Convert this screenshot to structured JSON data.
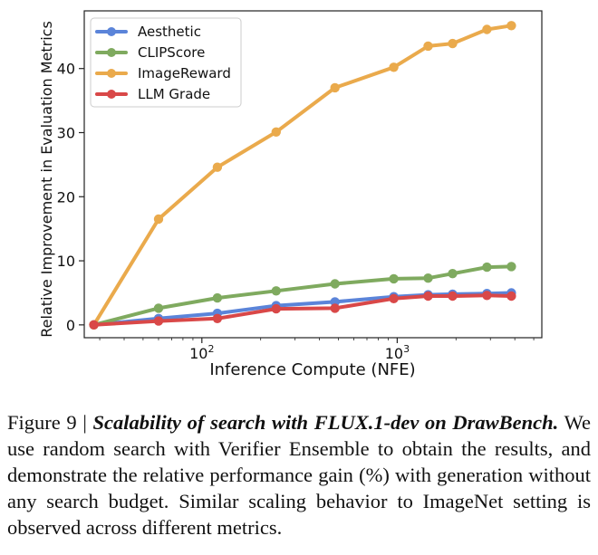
{
  "chart_data": {
    "type": "line",
    "title": "",
    "xlabel": "Inference Compute (NFE)",
    "ylabel": "Relative Improvement in Evaluation Metrics",
    "xscale": "log",
    "xlim": [
      25,
      5500
    ],
    "ylim": [
      -2,
      49
    ],
    "xticks": [
      {
        "value": 100,
        "base": "10",
        "exp": "2"
      },
      {
        "value": 1000,
        "base": "10",
        "exp": "3"
      }
    ],
    "yticks": [
      0,
      10,
      20,
      30,
      40
    ],
    "legend_position": "top-left",
    "series": [
      {
        "name": "Aesthetic",
        "color": "#5b84d9",
        "points": [
          [
            28,
            0
          ],
          [
            60,
            1.0
          ],
          [
            120,
            1.8
          ],
          [
            240,
            3.0
          ],
          [
            480,
            3.6
          ],
          [
            960,
            4.4
          ],
          [
            1440,
            4.7
          ],
          [
            1920,
            4.8
          ],
          [
            2880,
            4.9
          ],
          [
            3840,
            5.0
          ]
        ]
      },
      {
        "name": "CLIPScore",
        "color": "#7faa5f",
        "points": [
          [
            28,
            0
          ],
          [
            60,
            2.6
          ],
          [
            120,
            4.2
          ],
          [
            240,
            5.3
          ],
          [
            480,
            6.4
          ],
          [
            960,
            7.2
          ],
          [
            1440,
            7.3
          ],
          [
            1920,
            8.0
          ],
          [
            2880,
            9.0
          ],
          [
            3840,
            9.1
          ]
        ]
      },
      {
        "name": "ImageReward",
        "color": "#eaaa4c",
        "points": [
          [
            28,
            0
          ],
          [
            60,
            16.5
          ],
          [
            120,
            24.6
          ],
          [
            240,
            30.1
          ],
          [
            480,
            37.0
          ],
          [
            960,
            40.2
          ],
          [
            1440,
            43.5
          ],
          [
            1920,
            43.9
          ],
          [
            2880,
            46.1
          ],
          [
            3840,
            46.7
          ]
        ]
      },
      {
        "name": "LLM Grade",
        "color": "#d94848",
        "points": [
          [
            28,
            0
          ],
          [
            60,
            0.6
          ],
          [
            120,
            1.0
          ],
          [
            240,
            2.5
          ],
          [
            480,
            2.6
          ],
          [
            960,
            4.1
          ],
          [
            1440,
            4.5
          ],
          [
            1920,
            4.5
          ],
          [
            2880,
            4.6
          ],
          [
            3840,
            4.5
          ]
        ]
      }
    ]
  },
  "caption": {
    "label": "Figure 9 | ",
    "title": "Scalability of search with FLUX.1-dev on DrawBench.",
    "body": " We use random search with Verifier Ensemble to obtain the results, and demonstrate the relative performance gain (%) with generation without any search budget. Similar scaling behavior to ImageNet setting is observed across different metrics."
  }
}
